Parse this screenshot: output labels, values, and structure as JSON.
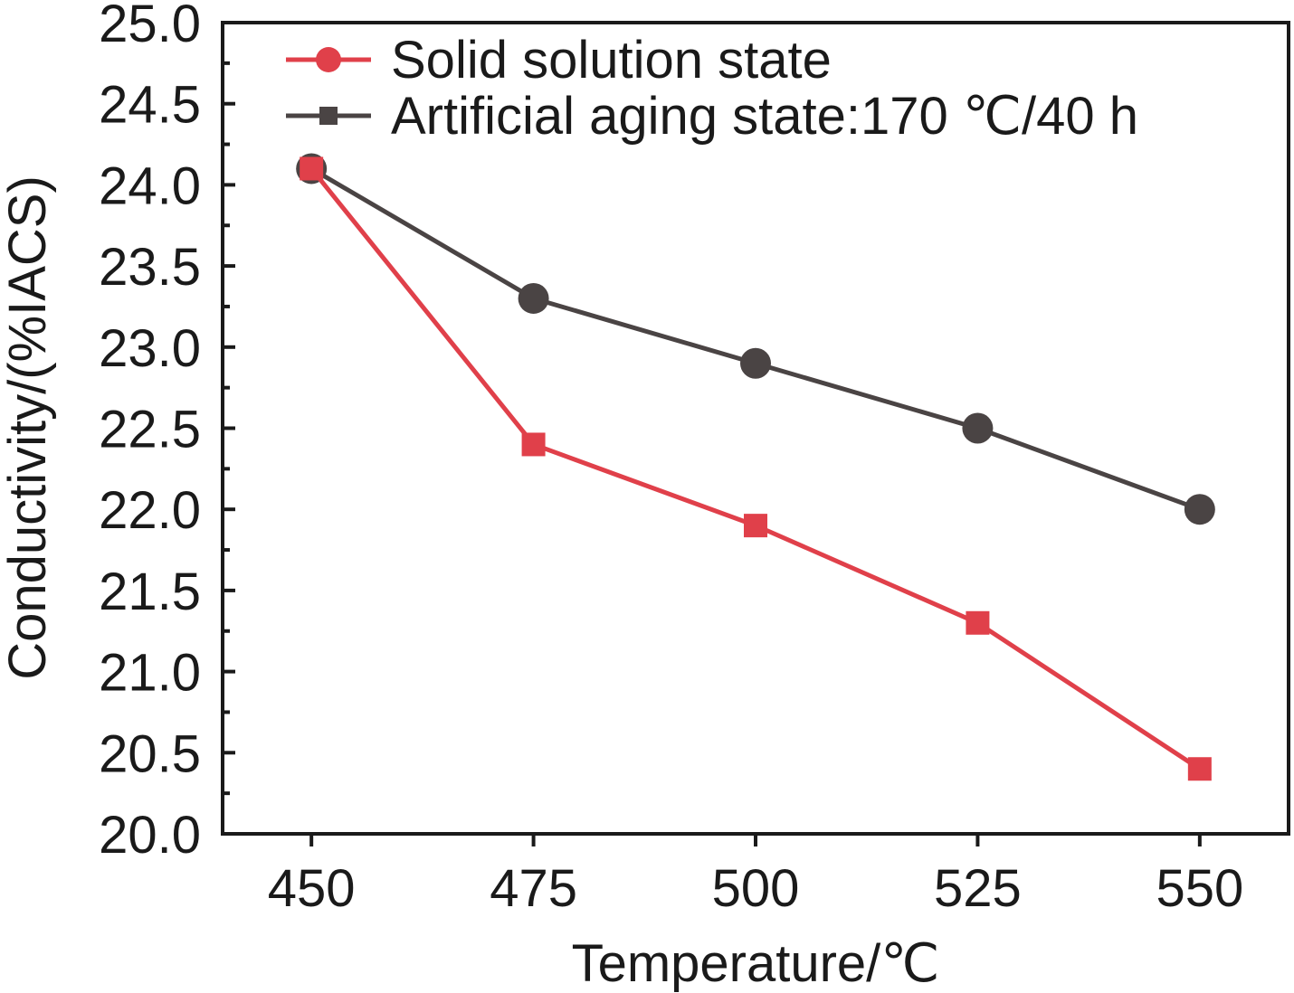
{
  "chart_data": {
    "type": "line",
    "xlabel": "Temperature/℃",
    "ylabel": "Conductivity/(%IACS)",
    "x": [
      450,
      475,
      500,
      525,
      550
    ],
    "xlim": [
      440,
      560
    ],
    "ylim": [
      20.0,
      25.0
    ],
    "xticks": [
      "450",
      "475",
      "500",
      "525",
      "550"
    ],
    "yticks": [
      "20.0",
      "20.5",
      "21.0",
      "21.5",
      "22.0",
      "22.5",
      "23.0",
      "23.5",
      "24.0",
      "24.5",
      "25.0"
    ],
    "legend_position": "top-left",
    "grid": false,
    "series": [
      {
        "name": "Solid solution state",
        "legend_marker": "circle",
        "point_marker": "square",
        "color": "#e0404a",
        "values": [
          24.1,
          22.4,
          21.9,
          21.3,
          20.4
        ]
      },
      {
        "name": "Artificial aging state:170 ℃/40 h",
        "legend_marker": "square",
        "point_marker": "circle",
        "color": "#4a4444",
        "values": [
          24.1,
          23.3,
          22.9,
          22.5,
          22.0
        ]
      }
    ]
  }
}
